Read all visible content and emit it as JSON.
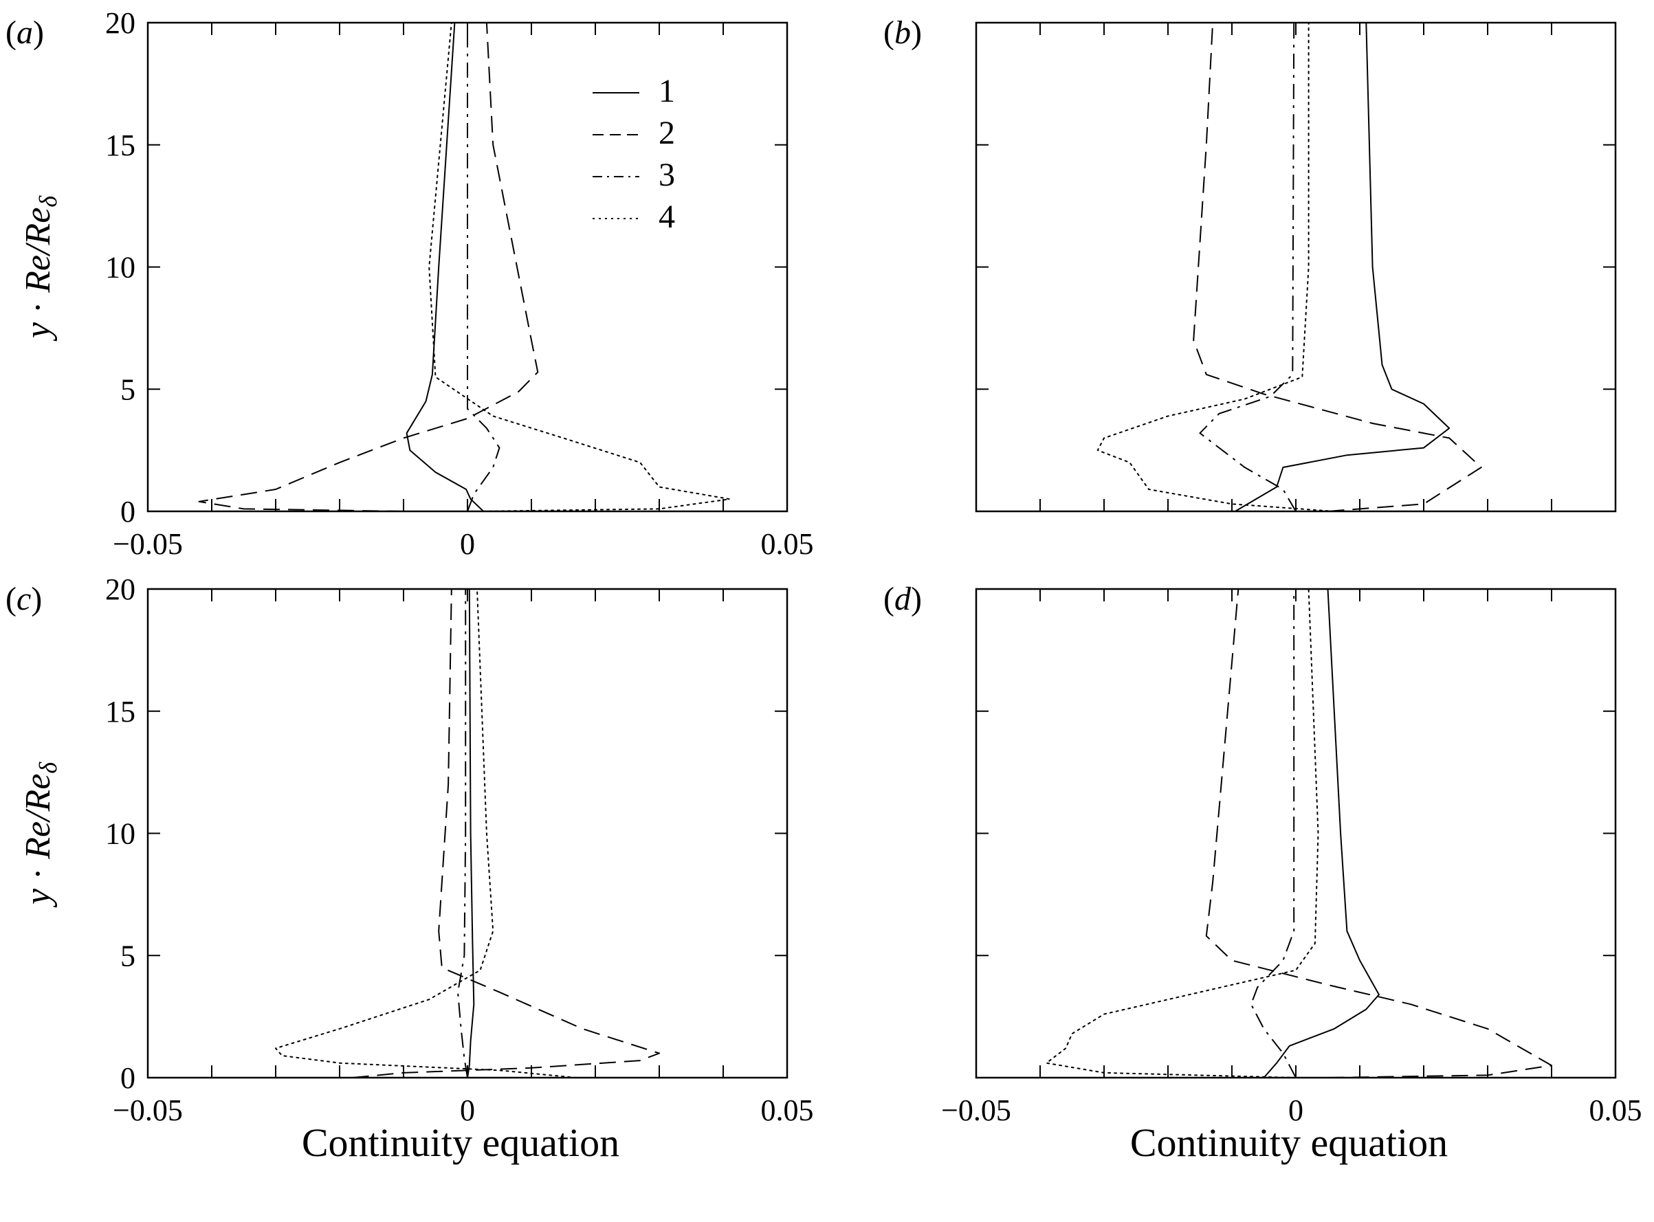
{
  "chart_data": [
    {
      "type": "line",
      "panel_label": "(a)",
      "ylabel": "y · Re/Re_δ",
      "xlabel": "",
      "xlim": [
        -0.05,
        0.05
      ],
      "ylim": [
        0,
        20
      ],
      "xticks": [
        "−0.05",
        "0",
        "0.05"
      ],
      "yticks": [
        "0",
        "5",
        "10",
        "15",
        "20"
      ],
      "legend": {
        "placement": "top-right",
        "entries": [
          "1",
          "2",
          "3",
          "4"
        ]
      },
      "series": [
        {
          "name": "1",
          "style": "solid",
          "points": [
            [
              0.0025,
              0
            ],
            [
              0.0005,
              0.5
            ],
            [
              -0.0002,
              0.9
            ],
            [
              -0.005,
              1.6
            ],
            [
              -0.009,
              2.5
            ],
            [
              -0.0095,
              3.2
            ],
            [
              -0.0065,
              4.5
            ],
            [
              -0.0055,
              5.6
            ],
            [
              -0.0045,
              10
            ],
            [
              -0.002,
              20
            ]
          ]
        },
        {
          "name": "2",
          "style": "dashed",
          "points": [
            [
              -0.01,
              0
            ],
            [
              -0.035,
              0.1
            ],
            [
              -0.042,
              0.4
            ],
            [
              -0.03,
              0.9
            ],
            [
              -0.02,
              2.0
            ],
            [
              -0.01,
              3.0
            ],
            [
              0.0,
              3.8
            ],
            [
              0.008,
              4.9
            ],
            [
              0.011,
              5.7
            ],
            [
              0.01,
              7
            ],
            [
              0.004,
              15
            ],
            [
              0.003,
              20
            ]
          ]
        },
        {
          "name": "3",
          "style": "dashdot",
          "points": [
            [
              0.0,
              0
            ],
            [
              0.001,
              0.7
            ],
            [
              0.004,
              1.8
            ],
            [
              0.005,
              2.6
            ],
            [
              0.003,
              3.4
            ],
            [
              0.0,
              4.2
            ],
            [
              0.0,
              20
            ]
          ]
        },
        {
          "name": "4",
          "style": "dotted",
          "points": [
            [
              0.0015,
              0
            ],
            [
              0.03,
              0.1
            ],
            [
              0.041,
              0.5
            ],
            [
              0.03,
              1.0
            ],
            [
              0.027,
              2.0
            ],
            [
              0.015,
              3.0
            ],
            [
              0.004,
              3.9
            ],
            [
              -0.005,
              5.5
            ],
            [
              -0.006,
              10
            ],
            [
              -0.0025,
              20
            ]
          ]
        }
      ]
    },
    {
      "type": "line",
      "panel_label": "(b)",
      "ylabel": "",
      "xlabel": "",
      "xlim": [
        -0.05,
        0.05
      ],
      "ylim": [
        0,
        20
      ],
      "xticks": [],
      "yticks": [],
      "series": [
        {
          "name": "1",
          "style": "solid",
          "points": [
            [
              -0.0095,
              0
            ],
            [
              -0.003,
              1.0
            ],
            [
              -0.002,
              1.8
            ],
            [
              0.008,
              2.3
            ],
            [
              0.02,
              2.6
            ],
            [
              0.024,
              3.4
            ],
            [
              0.02,
              4.4
            ],
            [
              0.015,
              5.0
            ],
            [
              0.0135,
              6
            ],
            [
              0.012,
              10
            ],
            [
              0.011,
              20
            ]
          ]
        },
        {
          "name": "2",
          "style": "dashed",
          "points": [
            [
              0.005,
              0
            ],
            [
              0.02,
              0.3
            ],
            [
              0.029,
              1.8
            ],
            [
              0.024,
              3.0
            ],
            [
              0.012,
              3.6
            ],
            [
              -0.005,
              4.8
            ],
            [
              -0.014,
              5.6
            ],
            [
              -0.016,
              7
            ],
            [
              -0.014,
              15
            ],
            [
              -0.013,
              20
            ]
          ]
        },
        {
          "name": "3",
          "style": "dashdot",
          "points": [
            [
              0.0,
              0
            ],
            [
              -0.002,
              0.9
            ],
            [
              -0.008,
              1.8
            ],
            [
              -0.015,
              3.2
            ],
            [
              -0.012,
              4.0
            ],
            [
              -0.004,
              4.7
            ],
            [
              -0.0005,
              5.6
            ],
            [
              -0.0003,
              20
            ]
          ]
        },
        {
          "name": "4",
          "style": "dotted",
          "points": [
            [
              0.006,
              0
            ],
            [
              -0.01,
              0.3
            ],
            [
              -0.023,
              0.9
            ],
            [
              -0.026,
              2.0
            ],
            [
              -0.031,
              2.5
            ],
            [
              -0.03,
              3.0
            ],
            [
              -0.02,
              3.9
            ],
            [
              -0.008,
              4.6
            ],
            [
              0.001,
              5.5
            ],
            [
              0.002,
              10
            ],
            [
              0.002,
              20
            ]
          ]
        }
      ]
    },
    {
      "type": "line",
      "panel_label": "(c)",
      "ylabel": "y · Re/Re_δ",
      "xlabel": "Continuity equation",
      "xlim": [
        -0.05,
        0.05
      ],
      "ylim": [
        0,
        20
      ],
      "xticks": [
        "−0.05",
        "0",
        "0.05"
      ],
      "yticks": [
        "0",
        "5",
        "10",
        "15",
        "20"
      ],
      "series": [
        {
          "name": "1",
          "style": "solid",
          "points": [
            [
              0.0,
              0
            ],
            [
              0.0003,
              0.5
            ],
            [
              0.0005,
              1.5
            ],
            [
              0.001,
              3.0
            ],
            [
              0.0008,
              5.5
            ],
            [
              0.0005,
              10
            ],
            [
              0.0003,
              20
            ]
          ]
        },
        {
          "name": "2",
          "style": "dashed",
          "points": [
            [
              -0.018,
              0
            ],
            [
              -0.01,
              0.2
            ],
            [
              0.01,
              0.4
            ],
            [
              0.027,
              0.7
            ],
            [
              0.03,
              1.0
            ],
            [
              0.018,
              2.0
            ],
            [
              0.005,
              3.5
            ],
            [
              -0.004,
              4.5
            ],
            [
              -0.0045,
              6
            ],
            [
              -0.003,
              12
            ],
            [
              -0.0025,
              20
            ]
          ]
        },
        {
          "name": "3",
          "style": "dashdot",
          "points": [
            [
              0.0,
              0
            ],
            [
              -0.0005,
              0.8
            ],
            [
              -0.001,
              2.0
            ],
            [
              -0.0015,
              3.5
            ],
            [
              -0.0005,
              5.0
            ],
            [
              -0.0003,
              10
            ],
            [
              -0.0003,
              20
            ]
          ]
        },
        {
          "name": "4",
          "style": "dotted",
          "points": [
            [
              0.017,
              0
            ],
            [
              0.005,
              0.3
            ],
            [
              -0.02,
              0.6
            ],
            [
              -0.029,
              0.9
            ],
            [
              -0.03,
              1.2
            ],
            [
              -0.02,
              2.0
            ],
            [
              -0.006,
              3.2
            ],
            [
              0.002,
              4.4
            ],
            [
              0.004,
              6
            ],
            [
              0.003,
              10
            ],
            [
              0.0015,
              20
            ]
          ]
        }
      ]
    },
    {
      "type": "line",
      "panel_label": "(d)",
      "ylabel": "",
      "xlabel": "Continuity equation",
      "xlim": [
        -0.05,
        0.05
      ],
      "ylim": [
        0,
        20
      ],
      "xticks": [
        "−0.05",
        "0",
        "0.05"
      ],
      "yticks": [],
      "series": [
        {
          "name": "1",
          "style": "solid",
          "points": [
            [
              -0.005,
              0
            ],
            [
              -0.003,
              0.6
            ],
            [
              -0.001,
              1.3
            ],
            [
              0.006,
              2.0
            ],
            [
              0.011,
              2.8
            ],
            [
              0.013,
              3.4
            ],
            [
              0.01,
              4.8
            ],
            [
              0.008,
              6
            ],
            [
              0.007,
              10
            ],
            [
              0.005,
              20
            ]
          ]
        },
        {
          "name": "2",
          "style": "dashed",
          "points": [
            [
              0.005,
              0
            ],
            [
              0.03,
              0.1
            ],
            [
              0.04,
              0.5
            ],
            [
              0.038,
              0.8
            ],
            [
              0.03,
              2.0
            ],
            [
              0.018,
              3.0
            ],
            [
              0.005,
              3.8
            ],
            [
              -0.01,
              4.8
            ],
            [
              -0.014,
              5.8
            ],
            [
              -0.013,
              8
            ],
            [
              -0.009,
              20
            ]
          ]
        },
        {
          "name": "3",
          "style": "dashdot",
          "points": [
            [
              0.0,
              0
            ],
            [
              -0.002,
              1.0
            ],
            [
              -0.005,
              2.0
            ],
            [
              -0.007,
              3.0
            ],
            [
              -0.006,
              3.7
            ],
            [
              -0.002,
              4.8
            ],
            [
              -0.0003,
              6
            ],
            [
              -0.0003,
              20
            ]
          ]
        },
        {
          "name": "4",
          "style": "dotted",
          "points": [
            [
              0.0,
              0
            ],
            [
              -0.03,
              0.2
            ],
            [
              -0.039,
              0.6
            ],
            [
              -0.036,
              1.2
            ],
            [
              -0.035,
              1.8
            ],
            [
              -0.03,
              2.6
            ],
            [
              -0.015,
              3.5
            ],
            [
              0.0,
              4.4
            ],
            [
              0.003,
              5.5
            ],
            [
              0.0035,
              10
            ],
            [
              0.002,
              20
            ]
          ]
        }
      ]
    }
  ]
}
